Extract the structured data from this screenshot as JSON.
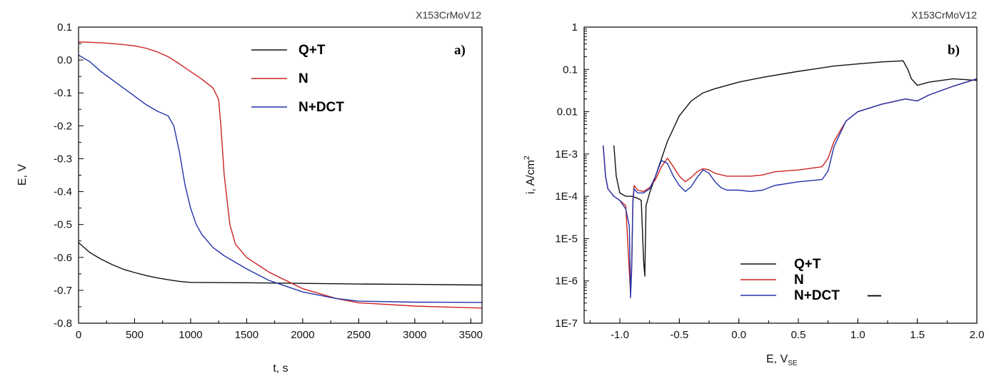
{
  "chart_data": [
    {
      "type": "line",
      "header": "X153CrMoV12",
      "panel_label": "a)",
      "xlabel": "t, s",
      "ylabel": "E, V",
      "xlim": [
        0,
        3600
      ],
      "ylim": [
        -0.8,
        0.1
      ],
      "xticks": [
        "0",
        "500",
        "1000",
        "1500",
        "2000",
        "2500",
        "3000",
        "3500"
      ],
      "yticks": [
        "0.1",
        "0.0",
        "-0.1",
        "-0.2",
        "-0.3",
        "-0.4",
        "-0.5",
        "-0.6",
        "-0.7",
        "-0.8"
      ],
      "legend_position": "top-right",
      "grid": false,
      "series": [
        {
          "name": "Q+T",
          "color": "#111111",
          "x": [
            0,
            100,
            200,
            300,
            400,
            500,
            600,
            700,
            800,
            900,
            1000,
            1500,
            2000,
            2500,
            3000,
            3600
          ],
          "y": [
            -0.555,
            -0.585,
            -0.605,
            -0.622,
            -0.636,
            -0.646,
            -0.655,
            -0.662,
            -0.668,
            -0.673,
            -0.676,
            -0.677,
            -0.679,
            -0.681,
            -0.682,
            -0.684
          ]
        },
        {
          "name": "N",
          "color": "#cc2222",
          "x": [
            0,
            100,
            200,
            300,
            400,
            500,
            600,
            700,
            800,
            900,
            1000,
            1100,
            1200,
            1250,
            1270,
            1300,
            1350,
            1400,
            1500,
            1700,
            2000,
            2300,
            2500,
            3000,
            3600
          ],
          "y": [
            0.055,
            0.054,
            0.052,
            0.05,
            0.047,
            0.043,
            0.036,
            0.025,
            0.01,
            -0.012,
            -0.035,
            -0.058,
            -0.085,
            -0.12,
            -0.2,
            -0.35,
            -0.5,
            -0.56,
            -0.6,
            -0.645,
            -0.695,
            -0.725,
            -0.738,
            -0.748,
            -0.754
          ]
        },
        {
          "name": "N+DCT",
          "color": "#2233aa",
          "x": [
            0,
            100,
            200,
            300,
            400,
            500,
            600,
            700,
            800,
            850,
            900,
            950,
            1000,
            1050,
            1100,
            1200,
            1300,
            1500,
            1700,
            2000,
            2300,
            2500,
            3000,
            3600
          ],
          "y": [
            0.015,
            -0.005,
            -0.035,
            -0.06,
            -0.085,
            -0.11,
            -0.135,
            -0.155,
            -0.17,
            -0.2,
            -0.28,
            -0.38,
            -0.45,
            -0.5,
            -0.53,
            -0.57,
            -0.595,
            -0.635,
            -0.67,
            -0.705,
            -0.725,
            -0.733,
            -0.736,
            -0.737
          ]
        }
      ]
    },
    {
      "type": "line",
      "header": "X153CrMoV12",
      "panel_label": "b)",
      "xlabel": "E, V",
      "xlabel_sub": "SE",
      "ylabel": "i, A/cm",
      "ylabel_sup": "2",
      "xlim": [
        -1.3,
        2.0
      ],
      "ylim": [
        1e-07,
        1
      ],
      "yscale": "log",
      "xticks": [
        "-1.0",
        "-0.5",
        "0.0",
        "0.5",
        "1.0",
        "1.5",
        "2.0"
      ],
      "yticks": [
        "1",
        "0.1",
        "0.01",
        "1E-3",
        "1E-4",
        "1E-5",
        "1E-6",
        "1E-7"
      ],
      "legend_position": "bottom-center",
      "legend_extra_mark": "—",
      "grid": false,
      "series": [
        {
          "name": "Q+T",
          "color": "#111111",
          "x": [
            -1.05,
            -1.03,
            -1.0,
            -0.95,
            -0.9,
            -0.85,
            -0.82,
            -0.8,
            -0.79,
            -0.78,
            -0.75,
            -0.7,
            -0.6,
            -0.5,
            -0.4,
            -0.3,
            -0.2,
            0.0,
            0.2,
            0.5,
            0.8,
            1.0,
            1.2,
            1.38,
            1.42,
            1.45,
            1.5,
            1.6,
            1.8,
            2.0
          ],
          "y": [
            0.0016,
            0.0003,
            0.00012,
            0.0001,
            0.0001,
            9e-05,
            8e-05,
            3e-06,
            1.3e-06,
            6e-05,
            0.00012,
            0.0003,
            0.002,
            0.008,
            0.018,
            0.028,
            0.035,
            0.05,
            0.065,
            0.09,
            0.12,
            0.135,
            0.15,
            0.16,
            0.1,
            0.06,
            0.042,
            0.05,
            0.06,
            0.055
          ]
        },
        {
          "name": "N",
          "color": "#cc2222",
          "x": [
            -1.14,
            -1.12,
            -1.1,
            -1.05,
            -1.0,
            -0.95,
            -0.91,
            -0.9,
            -0.89,
            -0.88,
            -0.85,
            -0.8,
            -0.75,
            -0.7,
            -0.65,
            -0.6,
            -0.55,
            -0.5,
            -0.45,
            -0.4,
            -0.35,
            -0.3,
            -0.25,
            -0.2,
            -0.1,
            0.0,
            0.1,
            0.2,
            0.3,
            0.5,
            0.7,
            0.75,
            0.8,
            0.9,
            1.0,
            1.2,
            1.4,
            1.5,
            1.6,
            1.8,
            2.0
          ],
          "y": [
            0.0016,
            0.0003,
            0.00015,
            0.0001,
            8e-05,
            6e-05,
            5e-07,
            3e-06,
            8e-05,
            0.00018,
            0.00014,
            0.00013,
            0.00016,
            0.00025,
            0.0005,
            0.0008,
            0.0005,
            0.0003,
            0.00022,
            0.00028,
            0.00038,
            0.00045,
            0.00042,
            0.00035,
            0.0003,
            0.0003,
            0.0003,
            0.00032,
            0.00038,
            0.00042,
            0.0005,
            0.0008,
            0.002,
            0.006,
            0.01,
            0.015,
            0.02,
            0.018,
            0.025,
            0.04,
            0.06
          ]
        },
        {
          "name": "N+DCT",
          "color": "#2233aa",
          "x": [
            -1.14,
            -1.12,
            -1.1,
            -1.05,
            -1.0,
            -0.95,
            -0.92,
            -0.91,
            -0.9,
            -0.89,
            -0.88,
            -0.85,
            -0.8,
            -0.75,
            -0.7,
            -0.65,
            -0.6,
            -0.55,
            -0.5,
            -0.45,
            -0.4,
            -0.35,
            -0.3,
            -0.25,
            -0.2,
            -0.15,
            -0.1,
            0.0,
            0.1,
            0.2,
            0.3,
            0.5,
            0.7,
            0.75,
            0.8,
            0.9,
            1.0,
            1.2,
            1.4,
            1.5,
            1.6,
            1.8,
            2.0
          ],
          "y": [
            0.0016,
            0.0003,
            0.00015,
            0.0001,
            8e-05,
            5e-05,
            2e-05,
            4e-07,
            2e-06,
            7e-05,
            0.00015,
            0.00012,
            0.00012,
            0.00015,
            0.0003,
            0.0007,
            0.0006,
            0.0003,
            0.00018,
            0.00013,
            0.00017,
            0.00028,
            0.00042,
            0.00035,
            0.00022,
            0.00016,
            0.00014,
            0.00014,
            0.00013,
            0.00014,
            0.00018,
            0.00022,
            0.00025,
            0.0004,
            0.0015,
            0.006,
            0.01,
            0.015,
            0.02,
            0.018,
            0.025,
            0.04,
            0.06
          ]
        }
      ]
    }
  ]
}
